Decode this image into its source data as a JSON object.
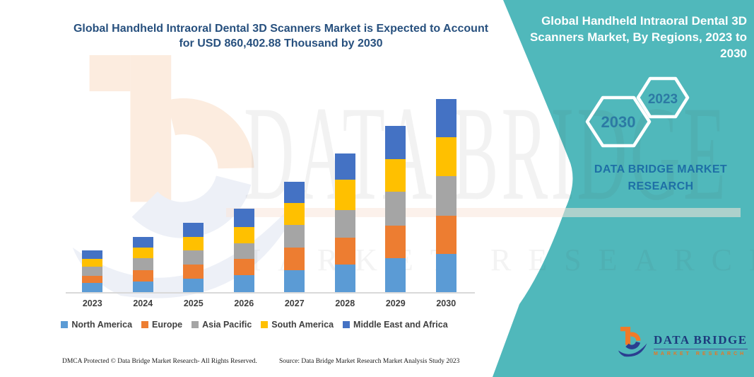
{
  "colors": {
    "teal_band": "#50B8BB",
    "title_navy": "#27507E",
    "brand_blue": "#1E6FA6",
    "hex_year_blue": "#2C7AA4",
    "logo_navy": "#2B3E90",
    "logo_orange": "#F07B28",
    "axis_line": "#D9D9D9",
    "label_gray": "#3F3F3F"
  },
  "header": {
    "title_lines": [
      "Global Handheld Intraoral Dental 3D Scanners Market is Expected to Account",
      "for USD 860,402.88 Thousand by 2030"
    ]
  },
  "right_panel": {
    "title_lines": [
      "Global Handheld Intraoral Dental 3D",
      "Scanners Market, By Regions, 2023 to",
      "2030"
    ],
    "hex_large_year": "2030",
    "hex_small_year": "2023",
    "brand_lines": [
      "DATA BRIDGE MARKET",
      "RESEARCH"
    ]
  },
  "watermark": {
    "big": "DATA BRIDGE",
    "sub": "MARKET RESEARCH"
  },
  "logo": {
    "title": "DATA BRIDGE",
    "subtitle": "MARKET RESEARCH"
  },
  "footer": {
    "left": "DMCA Protected © Data Bridge Market Research-  All Rights Reserved.",
    "right": "Source: Data Bridge Market Research  Market Analysis Study 2023"
  },
  "chart_data": {
    "type": "bar",
    "stacked": true,
    "title": "Global Handheld Intraoral Dental 3D Scanners Market is Expected to Account for USD 860,402.88 Thousand by 2030",
    "unit": "USD Thousand",
    "values_estimated_from_pixels": true,
    "stated_2030_total": 860402.88,
    "categories": [
      "2023",
      "2024",
      "2025",
      "2026",
      "2027",
      "2028",
      "2029",
      "2030"
    ],
    "series": [
      {
        "name": "North America",
        "color": "#5B9BD5",
        "values": [
          41500,
          48900,
          60200,
          74800,
          97600,
          123800,
          151800,
          170500
        ]
      },
      {
        "name": "Europe",
        "color": "#ED7D31",
        "values": [
          31200,
          49900,
          61400,
          72700,
          101900,
          119400,
          145600,
          169300
        ]
      },
      {
        "name": "Asia Pacific",
        "color": "#A5A5A5",
        "values": [
          39600,
          52000,
          63300,
          70800,
          99800,
          121600,
          148700,
          175500
        ]
      },
      {
        "name": "South America",
        "color": "#FFC000",
        "values": [
          35200,
          48900,
          61400,
          72700,
          96600,
          135000,
          145600,
          174600
        ]
      },
      {
        "name": "Middle East and Africa",
        "color": "#4472C4",
        "values": [
          39600,
          46800,
          62300,
          78900,
          96600,
          116300,
          148700,
          170500
        ]
      }
    ],
    "axis": {
      "y_axis_visible": false,
      "x_labels": [
        "2023",
        "2024",
        "2025",
        "2026",
        "2027",
        "2028",
        "2029",
        "2030"
      ]
    },
    "legend_position": "bottom",
    "grid": false
  }
}
